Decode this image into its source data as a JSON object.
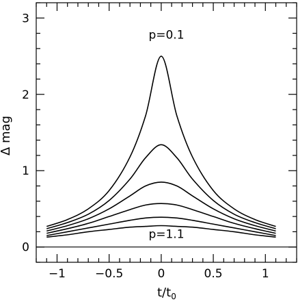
{
  "chart_data": {
    "type": "line",
    "xlabel": "t/t",
    "xlabel_sub": "0",
    "ylabel": "Δ mag",
    "xlim": [
      -1.2,
      1.3
    ],
    "ylim": [
      -0.2,
      3.2
    ],
    "x_ticks": [
      -1,
      -0.5,
      0,
      0.5,
      1
    ],
    "x_tick_labels": [
      "−1",
      "−0.5",
      "0",
      "0.5",
      "1"
    ],
    "x_minor_step": 0.1,
    "y_ticks": [
      0,
      1,
      2,
      3
    ],
    "y_tick_labels": [
      "0",
      "1",
      "2",
      "3"
    ],
    "y_minor_step": 0.2,
    "horizontal_reference_line": 0,
    "series": [
      {
        "x": [
          -1.1,
          -0.9,
          -0.7,
          -0.5,
          -0.3,
          -0.15,
          0,
          0.15,
          0.3,
          0.5,
          0.7,
          0.9,
          1.1
        ],
        "values": [
          0.27,
          0.36,
          0.5,
          0.74,
          1.18,
          1.72,
          2.5,
          1.72,
          1.18,
          0.74,
          0.5,
          0.36,
          0.27
        ]
      },
      {
        "x": [
          -1.1,
          -0.9,
          -0.7,
          -0.5,
          -0.3,
          -0.15,
          0,
          0.15,
          0.3,
          0.5,
          0.7,
          0.9,
          1.1
        ],
        "values": [
          0.24,
          0.32,
          0.43,
          0.61,
          0.89,
          1.17,
          1.34,
          1.17,
          0.89,
          0.61,
          0.43,
          0.32,
          0.24
        ]
      },
      {
        "x": [
          -1.1,
          -0.9,
          -0.7,
          -0.5,
          -0.3,
          -0.15,
          0,
          0.15,
          0.3,
          0.5,
          0.7,
          0.9,
          1.1
        ],
        "values": [
          0.21,
          0.28,
          0.37,
          0.5,
          0.67,
          0.8,
          0.85,
          0.8,
          0.67,
          0.5,
          0.37,
          0.28,
          0.21
        ]
      },
      {
        "x": [
          -1.1,
          -0.9,
          -0.7,
          -0.5,
          -0.3,
          -0.15,
          0,
          0.15,
          0.3,
          0.5,
          0.7,
          0.9,
          1.1
        ],
        "values": [
          0.18,
          0.24,
          0.31,
          0.4,
          0.49,
          0.55,
          0.57,
          0.55,
          0.49,
          0.4,
          0.31,
          0.24,
          0.18
        ]
      },
      {
        "x": [
          -1.1,
          -0.9,
          -0.7,
          -0.5,
          -0.3,
          -0.15,
          0,
          0.15,
          0.3,
          0.5,
          0.7,
          0.9,
          1.1
        ],
        "values": [
          0.15,
          0.2,
          0.25,
          0.3,
          0.35,
          0.38,
          0.39,
          0.38,
          0.35,
          0.3,
          0.25,
          0.2,
          0.15
        ]
      },
      {
        "x": [
          -1.1,
          -0.9,
          -0.7,
          -0.5,
          -0.3,
          -0.15,
          0,
          0.15,
          0.3,
          0.5,
          0.7,
          0.9,
          1.1
        ],
        "values": [
          0.13,
          0.16,
          0.2,
          0.23,
          0.26,
          0.27,
          0.28,
          0.27,
          0.26,
          0.23,
          0.2,
          0.16,
          0.13
        ]
      }
    ],
    "annotations": [
      {
        "text": "p=0.1",
        "x": 0.05,
        "y": 2.73
      },
      {
        "text": "p=1.1",
        "x": 0.05,
        "y": 0.12
      }
    ]
  }
}
